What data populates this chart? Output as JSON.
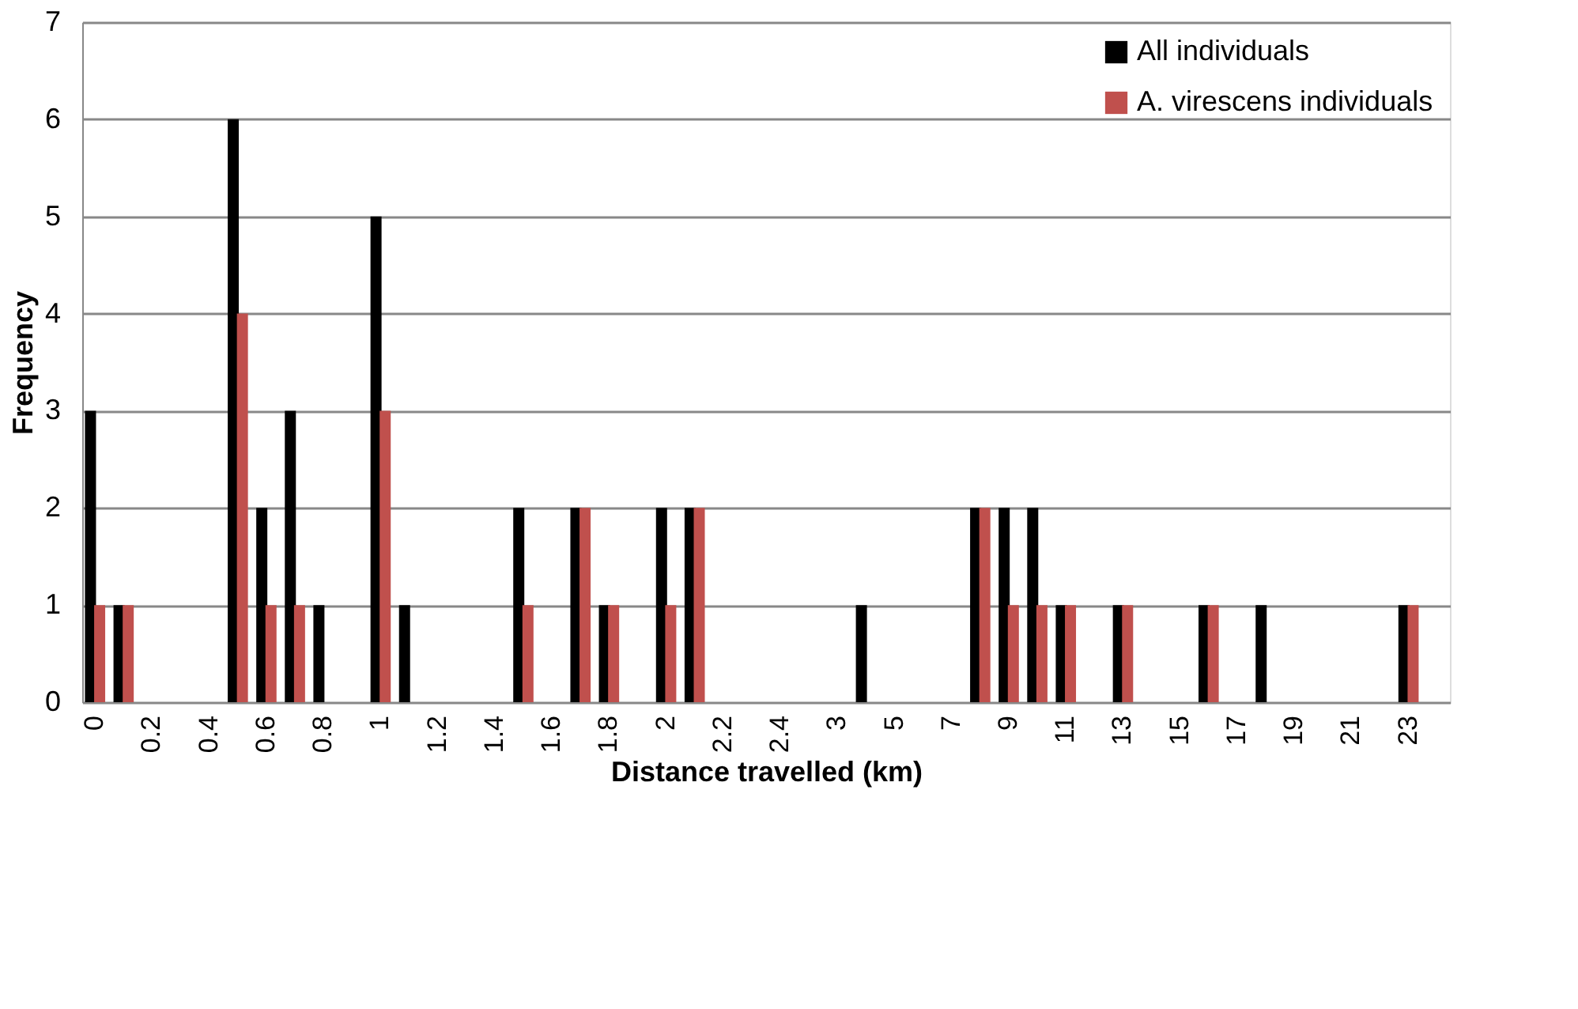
{
  "chart_data": {
    "type": "bar",
    "xlabel": "Distance travelled (km)",
    "ylabel": "Frequency",
    "categories": [
      "0",
      null,
      "0.2",
      null,
      "0.4",
      null,
      "0.6",
      null,
      "0.8",
      null,
      "1",
      null,
      "1.2",
      null,
      "1.4",
      null,
      "1.6",
      null,
      "1.8",
      null,
      "2",
      null,
      "2.2",
      null,
      "2.4",
      null,
      "3",
      null,
      "5",
      null,
      "7",
      null,
      "9",
      null,
      "11",
      null,
      "13",
      null,
      "15",
      null,
      "17",
      null,
      "19",
      null,
      "21",
      null,
      "23",
      null
    ],
    "series": [
      {
        "name": "All individuals",
        "color": "#000000",
        "values": [
          3,
          1,
          0,
          0,
          0,
          6,
          2,
          3,
          1,
          0,
          5,
          1,
          0,
          0,
          0,
          2,
          0,
          2,
          1,
          0,
          2,
          2,
          0,
          0,
          0,
          0,
          0,
          1,
          0,
          0,
          0,
          2,
          2,
          2,
          1,
          0,
          1,
          0,
          0,
          1,
          0,
          1,
          0,
          0,
          0,
          0,
          1,
          0
        ]
      },
      {
        "name": "A. virescens individuals",
        "color": "#c0504d",
        "values": [
          1,
          1,
          0,
          0,
          0,
          4,
          1,
          1,
          0,
          0,
          3,
          0,
          0,
          0,
          0,
          1,
          0,
          2,
          1,
          0,
          1,
          2,
          0,
          0,
          0,
          0,
          0,
          0,
          0,
          0,
          0,
          2,
          1,
          1,
          1,
          0,
          1,
          0,
          0,
          1,
          0,
          0,
          0,
          0,
          0,
          0,
          1,
          0
        ]
      }
    ],
    "ylim": [
      0,
      7
    ],
    "yticks": [
      0,
      1,
      2,
      3,
      4,
      5,
      6,
      7
    ],
    "grid": "y",
    "legend": "top right"
  }
}
